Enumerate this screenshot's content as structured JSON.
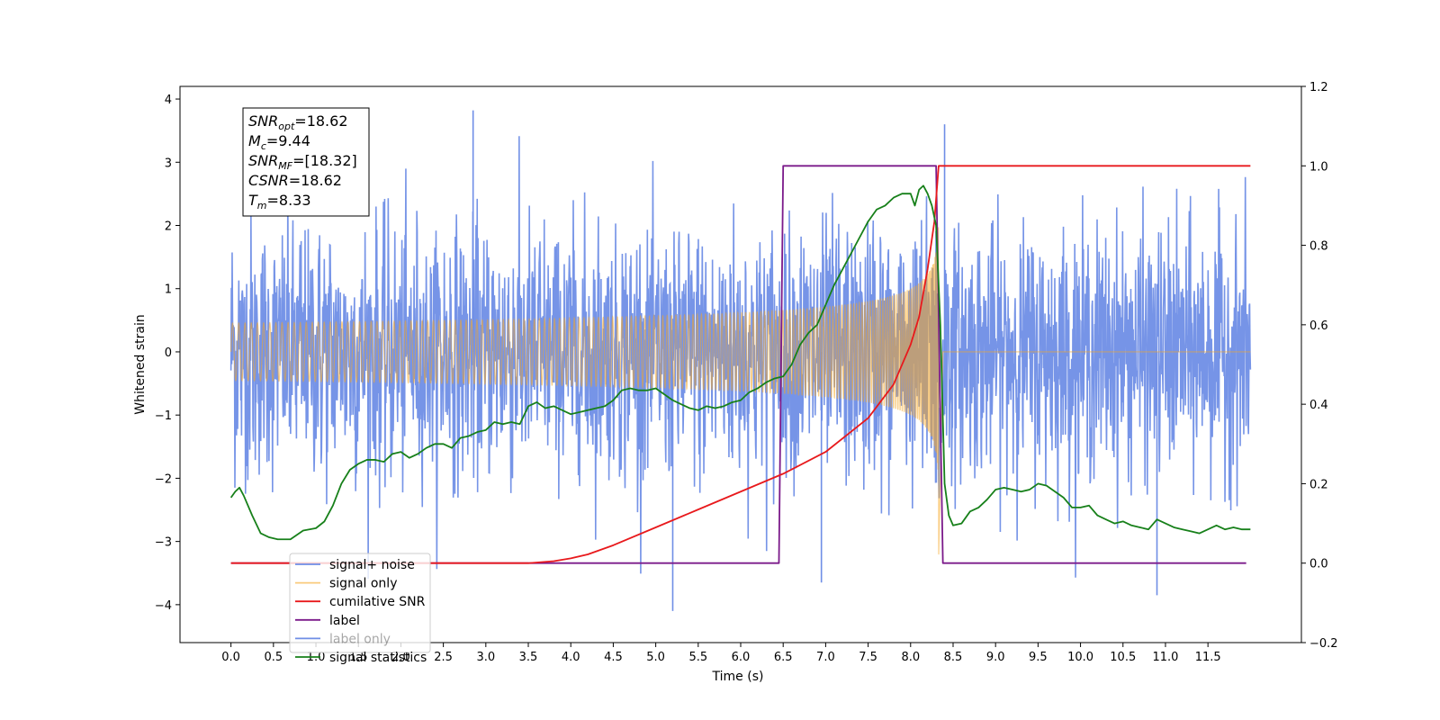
{
  "chart_data": {
    "type": "line",
    "xlabel": "Time (s)",
    "ylabel_left": "Whitened strain",
    "xlim": [
      -0.6,
      12.6
    ],
    "ylim_left": [
      -4.6,
      4.2
    ],
    "ylim_right": [
      -0.2,
      1.2
    ],
    "xticks": [
      0.0,
      0.5,
      1.0,
      1.5,
      2.0,
      2.5,
      3.0,
      3.5,
      4.0,
      4.5,
      5.0,
      5.5,
      6.0,
      6.5,
      7.0,
      7.5,
      8.0,
      8.5,
      9.0,
      9.5,
      10.0,
      10.5,
      11.0,
      11.5
    ],
    "xtick_labels": [
      "0.0",
      "0.5",
      "1.0",
      "1.5",
      "2.0",
      "2.5",
      "3.0",
      "3.5",
      "4.0",
      "4.5",
      "5.0",
      "5.5",
      "6.0",
      "6.5",
      "7.0",
      "7.5",
      "8.0",
      "8.5",
      "9.0",
      "9.5",
      "10.0",
      "10.5",
      "11.0",
      "11.5"
    ],
    "yticks_left": [
      -4,
      -3,
      -2,
      -1,
      0,
      1,
      2,
      3,
      4
    ],
    "ytick_labels_left": [
      "−4",
      "−3",
      "−2",
      "−1",
      "0",
      "1",
      "2",
      "3",
      "4"
    ],
    "yticks_right": [
      -0.2,
      0.0,
      0.2,
      0.4,
      0.6,
      0.8,
      1.0,
      1.2
    ],
    "ytick_labels_right": [
      "−0.2",
      "0.0",
      "0.2",
      "0.4",
      "0.6",
      "0.8",
      "1.0",
      "1.2"
    ],
    "grid": false,
    "legend_position": "lower-left",
    "series": [
      {
        "name": "signal+ noise",
        "axis": "left",
        "color": "#6f8ee6",
        "noise": {
          "x_start": 0.0,
          "x_end": 12.0,
          "amplitude_sigma": 0.95
        },
        "note_points": [
          [
            2.85,
            3.82
          ],
          [
            5.2,
            -4.1
          ],
          [
            6.95,
            -3.65
          ],
          [
            8.4,
            3.6
          ],
          [
            10.9,
            -3.85
          ]
        ]
      },
      {
        "name": "signal only",
        "axis": "left",
        "color": "#f5a623",
        "chirp": {
          "x_start": 0.0,
          "x_end": 12.0,
          "merger_time": 8.33,
          "peak_amplitude": 2.05,
          "final_dip": -3.25
        }
      },
      {
        "name": "cumilative SNR",
        "axis": "right",
        "color": "#e8191c",
        "points": [
          [
            0.0,
            0.0
          ],
          [
            3.5,
            0.0
          ],
          [
            3.8,
            0.005
          ],
          [
            4.0,
            0.012
          ],
          [
            4.2,
            0.022
          ],
          [
            4.5,
            0.045
          ],
          [
            5.0,
            0.09
          ],
          [
            5.5,
            0.135
          ],
          [
            6.0,
            0.18
          ],
          [
            6.5,
            0.225
          ],
          [
            7.0,
            0.28
          ],
          [
            7.5,
            0.365
          ],
          [
            7.8,
            0.45
          ],
          [
            8.0,
            0.55
          ],
          [
            8.1,
            0.62
          ],
          [
            8.2,
            0.74
          ],
          [
            8.28,
            0.86
          ],
          [
            8.33,
            1.0
          ],
          [
            12.0,
            1.0
          ]
        ]
      },
      {
        "name": "label",
        "axis": "right",
        "color": "#7b1a8a",
        "points": [
          [
            0.0,
            0.0
          ],
          [
            6.45,
            0.0
          ],
          [
            6.5,
            1.0
          ],
          [
            8.3,
            1.0
          ],
          [
            8.38,
            0.0
          ],
          [
            11.95,
            0.0
          ]
        ]
      },
      {
        "name": "label only",
        "axis": "right",
        "color": "#6f8ee6",
        "points": []
      },
      {
        "name": "signal statistics",
        "axis": "right",
        "color": "#17801a",
        "points": [
          [
            0.0,
            0.165
          ],
          [
            0.05,
            0.18
          ],
          [
            0.1,
            0.19
          ],
          [
            0.15,
            0.17
          ],
          [
            0.25,
            0.12
          ],
          [
            0.35,
            0.075
          ],
          [
            0.45,
            0.065
          ],
          [
            0.55,
            0.06
          ],
          [
            0.7,
            0.06
          ],
          [
            0.85,
            0.082
          ],
          [
            1.0,
            0.088
          ],
          [
            1.1,
            0.105
          ],
          [
            1.2,
            0.145
          ],
          [
            1.3,
            0.2
          ],
          [
            1.4,
            0.235
          ],
          [
            1.5,
            0.25
          ],
          [
            1.6,
            0.26
          ],
          [
            1.7,
            0.26
          ],
          [
            1.8,
            0.255
          ],
          [
            1.9,
            0.275
          ],
          [
            2.0,
            0.28
          ],
          [
            2.1,
            0.265
          ],
          [
            2.2,
            0.275
          ],
          [
            2.3,
            0.29
          ],
          [
            2.4,
            0.3
          ],
          [
            2.5,
            0.3
          ],
          [
            2.6,
            0.29
          ],
          [
            2.7,
            0.315
          ],
          [
            2.8,
            0.32
          ],
          [
            2.9,
            0.33
          ],
          [
            3.0,
            0.335
          ],
          [
            3.1,
            0.355
          ],
          [
            3.2,
            0.35
          ],
          [
            3.3,
            0.355
          ],
          [
            3.4,
            0.35
          ],
          [
            3.5,
            0.395
          ],
          [
            3.6,
            0.405
          ],
          [
            3.7,
            0.39
          ],
          [
            3.8,
            0.395
          ],
          [
            3.9,
            0.385
          ],
          [
            4.0,
            0.375
          ],
          [
            4.1,
            0.38
          ],
          [
            4.2,
            0.385
          ],
          [
            4.3,
            0.39
          ],
          [
            4.4,
            0.395
          ],
          [
            4.5,
            0.41
          ],
          [
            4.6,
            0.435
          ],
          [
            4.7,
            0.44
          ],
          [
            4.8,
            0.435
          ],
          [
            4.9,
            0.435
          ],
          [
            5.0,
            0.44
          ],
          [
            5.1,
            0.425
          ],
          [
            5.2,
            0.41
          ],
          [
            5.3,
            0.4
          ],
          [
            5.4,
            0.39
          ],
          [
            5.5,
            0.385
          ],
          [
            5.6,
            0.395
          ],
          [
            5.7,
            0.39
          ],
          [
            5.8,
            0.395
          ],
          [
            5.9,
            0.405
          ],
          [
            6.0,
            0.41
          ],
          [
            6.1,
            0.43
          ],
          [
            6.2,
            0.44
          ],
          [
            6.3,
            0.455
          ],
          [
            6.4,
            0.465
          ],
          [
            6.5,
            0.47
          ],
          [
            6.6,
            0.5
          ],
          [
            6.7,
            0.55
          ],
          [
            6.8,
            0.58
          ],
          [
            6.9,
            0.6
          ],
          [
            7.0,
            0.65
          ],
          [
            7.1,
            0.7
          ],
          [
            7.2,
            0.74
          ],
          [
            7.3,
            0.78
          ],
          [
            7.4,
            0.82
          ],
          [
            7.5,
            0.86
          ],
          [
            7.6,
            0.89
          ],
          [
            7.7,
            0.9
          ],
          [
            7.8,
            0.92
          ],
          [
            7.9,
            0.93
          ],
          [
            8.0,
            0.93
          ],
          [
            8.05,
            0.9
          ],
          [
            8.1,
            0.94
          ],
          [
            8.15,
            0.95
          ],
          [
            8.2,
            0.93
          ],
          [
            8.25,
            0.9
          ],
          [
            8.3,
            0.85
          ],
          [
            8.35,
            0.6
          ],
          [
            8.4,
            0.2
          ],
          [
            8.45,
            0.12
          ],
          [
            8.5,
            0.095
          ],
          [
            8.6,
            0.1
          ],
          [
            8.7,
            0.13
          ],
          [
            8.8,
            0.14
          ],
          [
            8.9,
            0.16
          ],
          [
            9.0,
            0.185
          ],
          [
            9.1,
            0.19
          ],
          [
            9.2,
            0.185
          ],
          [
            9.3,
            0.18
          ],
          [
            9.4,
            0.185
          ],
          [
            9.5,
            0.2
          ],
          [
            9.6,
            0.195
          ],
          [
            9.7,
            0.18
          ],
          [
            9.8,
            0.165
          ],
          [
            9.9,
            0.14
          ],
          [
            10.0,
            0.14
          ],
          [
            10.1,
            0.145
          ],
          [
            10.2,
            0.12
          ],
          [
            10.3,
            0.11
          ],
          [
            10.4,
            0.1
          ],
          [
            10.5,
            0.105
          ],
          [
            10.6,
            0.095
          ],
          [
            10.7,
            0.09
          ],
          [
            10.8,
            0.085
          ],
          [
            10.9,
            0.11
          ],
          [
            11.0,
            0.1
          ],
          [
            11.1,
            0.09
          ],
          [
            11.2,
            0.085
          ],
          [
            11.3,
            0.08
          ],
          [
            11.4,
            0.075
          ],
          [
            11.5,
            0.085
          ],
          [
            11.6,
            0.095
          ],
          [
            11.7,
            0.085
          ],
          [
            11.8,
            0.09
          ],
          [
            11.9,
            0.085
          ],
          [
            12.0,
            0.085
          ]
        ]
      }
    ],
    "annotation": {
      "lines": [
        {
          "symbol": "SNR",
          "subscript": "opt",
          "value": "=18.62"
        },
        {
          "symbol": "M",
          "subscript": "c",
          "value": "=9.44"
        },
        {
          "symbol": "SNR",
          "subscript": "MF",
          "value": "=[18.32]"
        },
        {
          "symbol": "CSNR",
          "subscript": "",
          "value": "=18.62"
        },
        {
          "symbol": "T",
          "subscript": "m",
          "value": "=8.33"
        }
      ]
    }
  }
}
